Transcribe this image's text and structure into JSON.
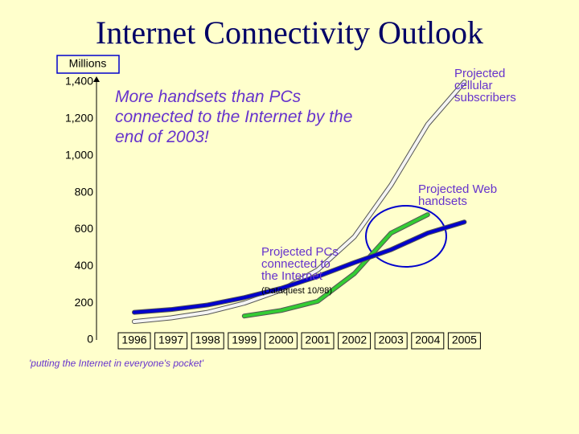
{
  "chart_data": {
    "type": "line",
    "title": "Internet Connectivity Outlook",
    "y_axis_label": "Millions",
    "annotation": "More handsets than PCs connected to the Internet by the end of 2003!",
    "source": "(Dataquest 10/98)",
    "footer": "'putting the Internet in everyone's pocket'",
    "categories": [
      "1996",
      "1997",
      "1998",
      "1999",
      "2000",
      "2001",
      "2002",
      "2003",
      "2004",
      "2005"
    ],
    "ylim": [
      0,
      1400
    ],
    "yticks": [
      0,
      200,
      400,
      600,
      800,
      {
        "value": 1000,
        "label": "1,000"
      },
      {
        "value": 1200,
        "label": "1,200"
      },
      {
        "value": 1400,
        "label": "1,400"
      }
    ],
    "series": [
      {
        "name": "Projected cellular subscribers",
        "color": "#f4f4f4",
        "values": [
          100,
          120,
          150,
          200,
          270,
          380,
          560,
          840,
          1170,
          1400
        ]
      },
      {
        "name": "Projected Web handsets",
        "color": "#33cc33",
        "values": [
          null,
          null,
          null,
          130,
          160,
          210,
          360,
          580,
          680,
          null
        ]
      },
      {
        "name": "Projected PCs connected to the Internet",
        "color": "#0000cc",
        "values": [
          150,
          165,
          190,
          230,
          280,
          345,
          420,
          490,
          580,
          640
        ]
      }
    ]
  }
}
